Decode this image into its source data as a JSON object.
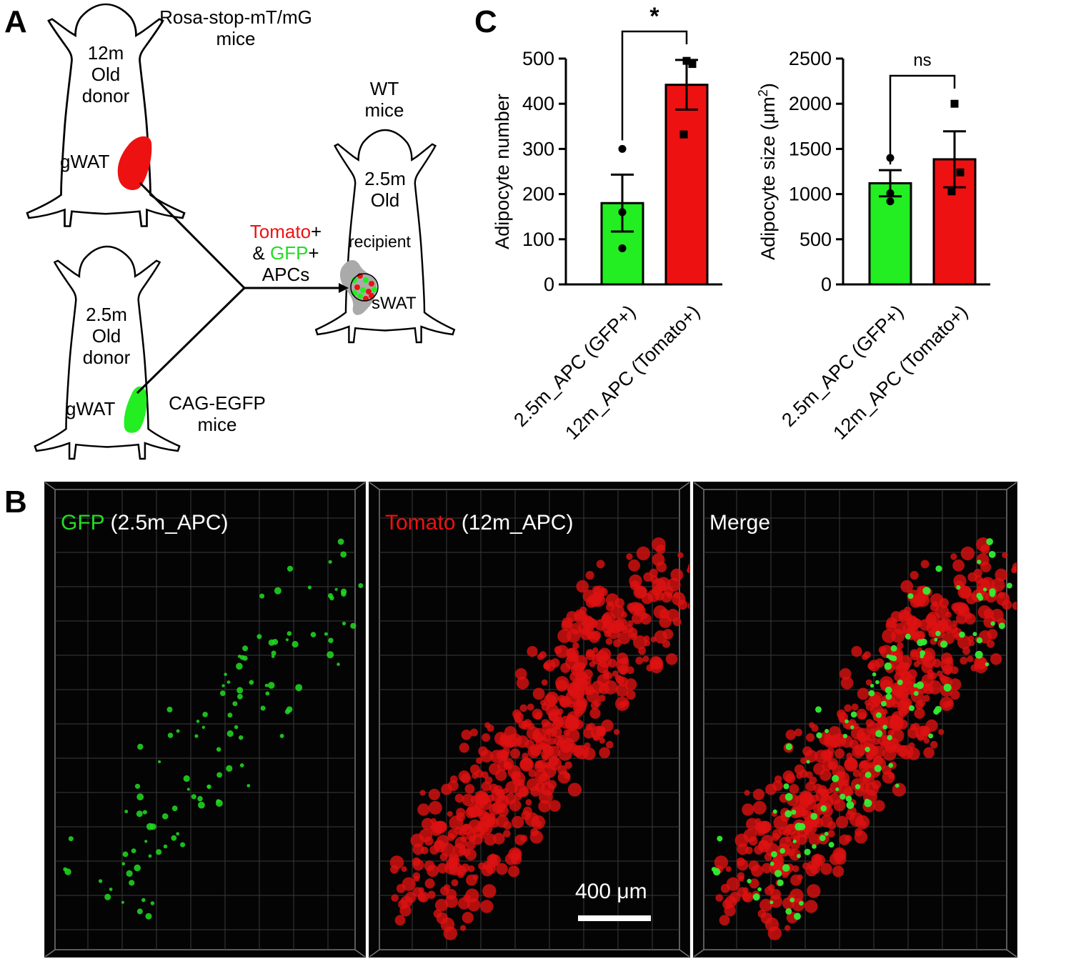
{
  "panels": {
    "a": {
      "letter": "A",
      "donor_old": {
        "line1": "12m",
        "line2": "Old",
        "line3": "donor",
        "fat": "gWAT",
        "strain_line1": "Rosa-stop-mT/mG",
        "strain_line2": "mice"
      },
      "donor_young": {
        "line1": "2.5m",
        "line2": "Old",
        "line3": "donor",
        "fat": "gWAT",
        "strain_line1": "CAG-EGFP",
        "strain_line2": "mice"
      },
      "recipient": {
        "strain_line1": "WT",
        "strain_line2": "mice",
        "line1": "2.5m",
        "line2": "Old",
        "line3": "recipient",
        "fat": "sWAT"
      },
      "transfer": {
        "tomato": "Tomato",
        "plus1": "+",
        "amp": "& ",
        "gfp": "GFP",
        "plus2": "+",
        "cells": "APCs"
      },
      "colors": {
        "tomato": "#ee1111",
        "gfp": "#22dd22",
        "strain": "#1f78c1",
        "graft": "#aaaaaa"
      }
    },
    "b": {
      "letter": "B",
      "images": [
        {
          "label_colored": "GFP",
          "label_rest": " (2.5m_APC)",
          "label_color": "#22dd22"
        },
        {
          "label_colored": "Tomato",
          "label_rest": " (12m_APC)",
          "label_color": "#ee1111"
        },
        {
          "label_colored": "",
          "label_rest": "Merge",
          "label_color": "#ffffff"
        }
      ],
      "scale_bar": "400 μm"
    },
    "c": {
      "letter": "C"
    }
  },
  "chart_data": [
    {
      "type": "bar",
      "ylabel": "Adipocyte number",
      "categories": [
        "2.5m_APC (GFP+)",
        "12m_APC (Tomato+)"
      ],
      "values": [
        180,
        442
      ],
      "errors": [
        63,
        55
      ],
      "points": [
        [
          300,
          160,
          80
        ],
        [
          495,
          488,
          332
        ]
      ],
      "colors": [
        "#22ee22",
        "#ee1111"
      ],
      "ylim": [
        0,
        500
      ],
      "yticks": [
        0,
        100,
        200,
        300,
        400,
        500
      ],
      "significance": "*"
    },
    {
      "type": "bar",
      "ylabel": "Adipocyte size (μm²)",
      "ylabel_main": "Adipocyte size (",
      "ylabel_unit": "μm",
      "ylabel_sup": "2",
      "ylabel_end": ")",
      "categories": [
        "2.5m_APC (GFP+)",
        "12m_APC (Tomato+)"
      ],
      "values": [
        1120,
        1385
      ],
      "errors": [
        145,
        310
      ],
      "points": [
        [
          1400,
          1010,
          920
        ],
        [
          2000,
          1240,
          1030
        ]
      ],
      "colors": [
        "#22ee22",
        "#ee1111"
      ],
      "ylim": [
        0,
        2500
      ],
      "yticks": [
        0,
        500,
        1000,
        1500,
        2000,
        2500
      ],
      "significance": "ns"
    }
  ]
}
